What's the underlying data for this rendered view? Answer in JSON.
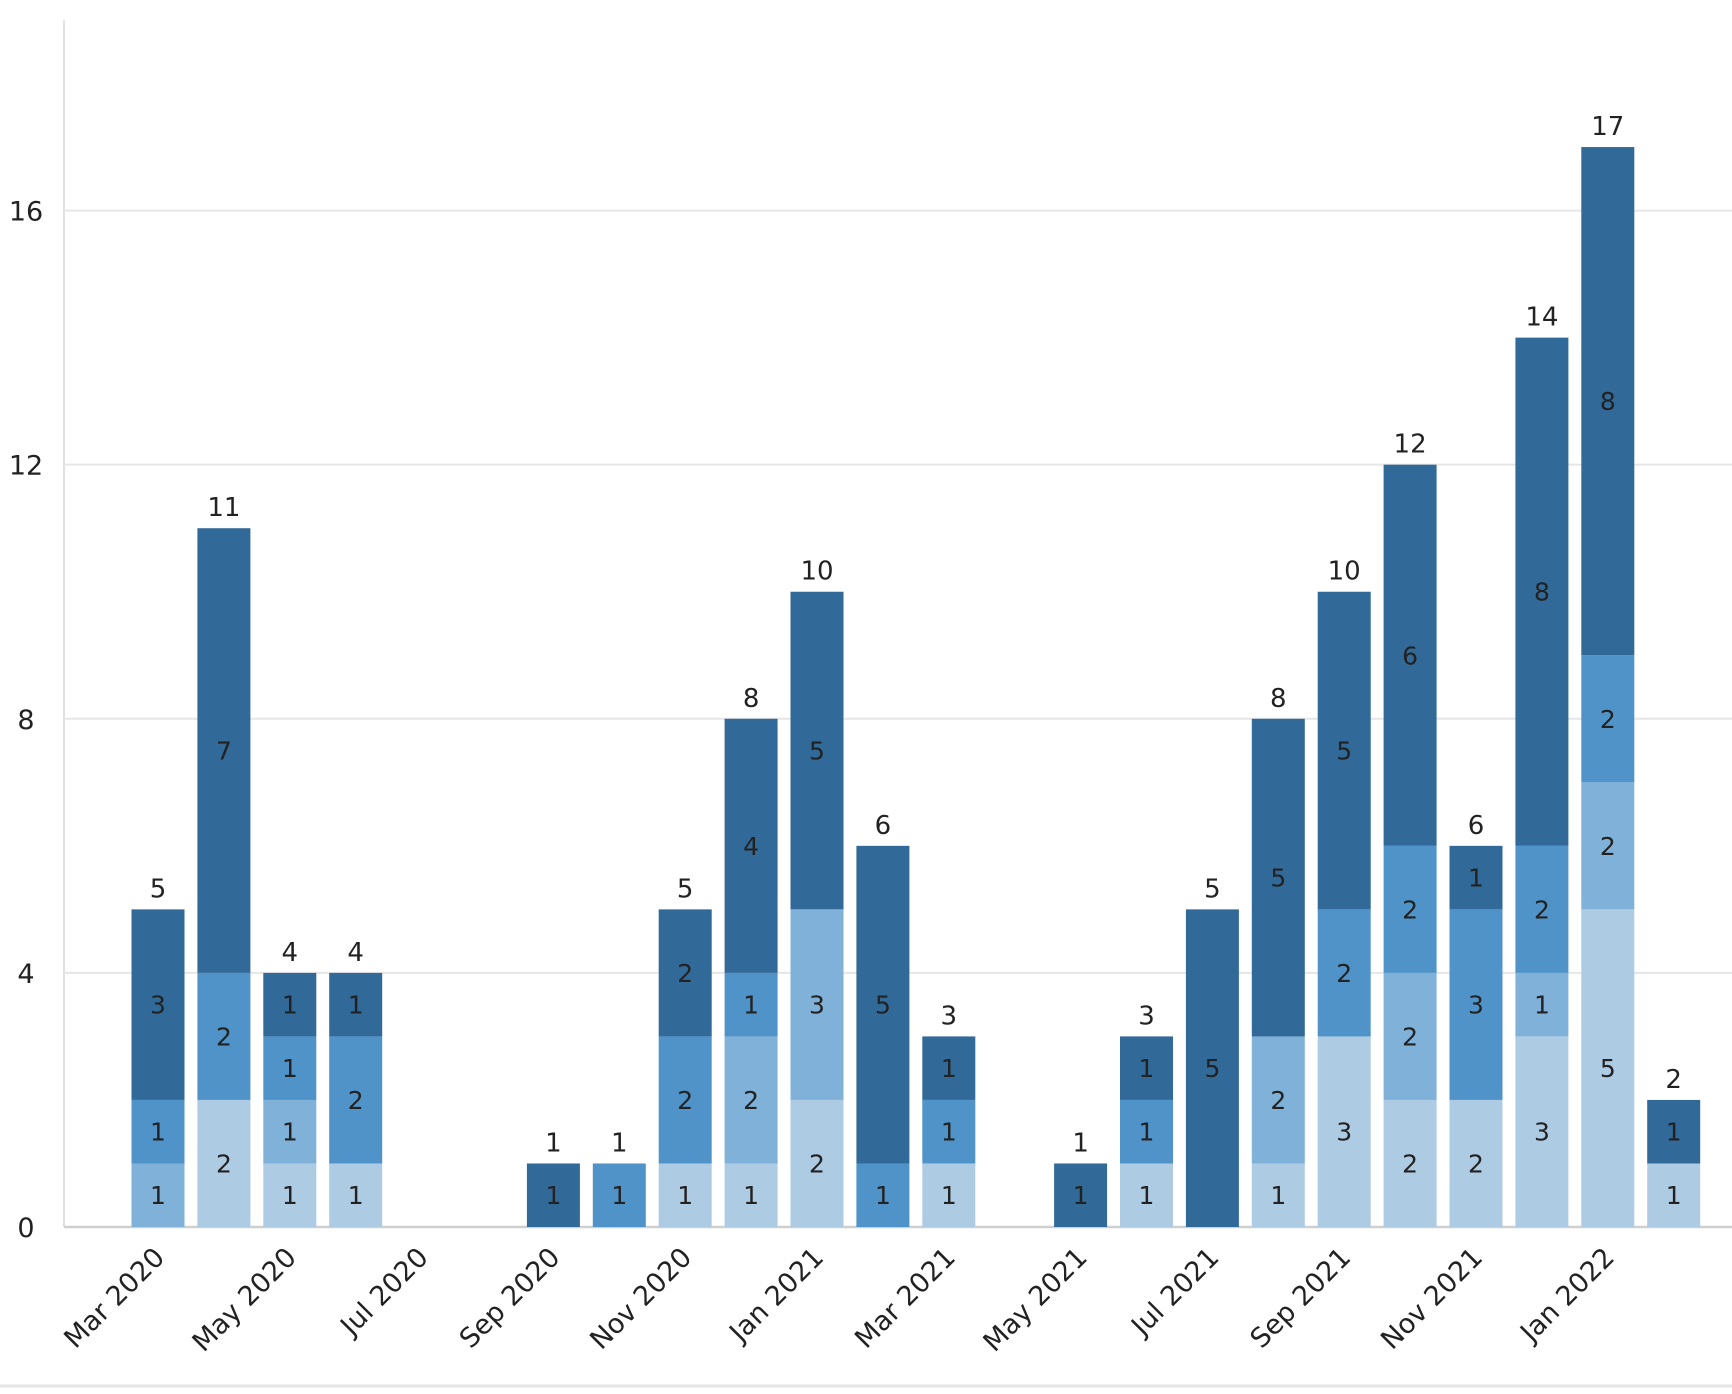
{
  "chart_data": {
    "type": "bar",
    "stacked": true,
    "title": "",
    "xlabel": "",
    "ylabel": "",
    "ylim": [
      0,
      19
    ],
    "yticks": [
      0,
      4,
      8,
      12,
      16
    ],
    "grid": "horizontal",
    "categories": [
      "Mar 2020",
      "Apr 2020",
      "May 2020",
      "Jun 2020",
      "Jul 2020",
      "Aug 2020",
      "Sep 2020",
      "Oct 2020",
      "Nov 2020",
      "Dec 2020",
      "Jan 2021",
      "Feb 2021",
      "Mar 2021",
      "Apr 2021",
      "May 2021",
      "Jun 2021",
      "Jul 2021",
      "Aug 2021",
      "Sep 2021",
      "Oct 2021",
      "Nov 2021",
      "Dec 2021",
      "Jan 2022",
      "Feb 2022"
    ],
    "xtick_labels": [
      "Mar 2020",
      "May 2020",
      "Jul 2020",
      "Sep 2020",
      "Nov 2020",
      "Jan 2021",
      "Mar 2021",
      "May 2021",
      "Jul 2021",
      "Sep 2021",
      "Nov 2021",
      "Jan 2022"
    ],
    "series": [
      {
        "color": "#aecbe4",
        "values": [
          0,
          2,
          1,
          1,
          0,
          0,
          0,
          0,
          1,
          1,
          2,
          0,
          1,
          0,
          0,
          1,
          0,
          1,
          3,
          2,
          2,
          3,
          5,
          1
        ]
      },
      {
        "color": "#80b1d8",
        "values": [
          1,
          0,
          1,
          0,
          0,
          0,
          0,
          0,
          0,
          2,
          3,
          0,
          0,
          0,
          0,
          0,
          0,
          2,
          0,
          2,
          0,
          1,
          2,
          0
        ]
      },
      {
        "color": "#4f93c8",
        "values": [
          1,
          2,
          1,
          2,
          0,
          0,
          0,
          1,
          2,
          1,
          0,
          1,
          1,
          0,
          0,
          1,
          0,
          0,
          2,
          2,
          3,
          2,
          2,
          0
        ]
      },
      {
        "color": "#316a98",
        "values": [
          3,
          7,
          1,
          1,
          0,
          0,
          1,
          0,
          2,
          4,
          5,
          5,
          1,
          0,
          1,
          1,
          5,
          5,
          5,
          6,
          1,
          8,
          8,
          1
        ]
      }
    ],
    "totals": [
      5,
      11,
      4,
      4,
      0,
      0,
      1,
      1,
      5,
      8,
      10,
      6,
      3,
      0,
      1,
      3,
      5,
      8,
      10,
      12,
      6,
      14,
      17,
      2
    ]
  }
}
